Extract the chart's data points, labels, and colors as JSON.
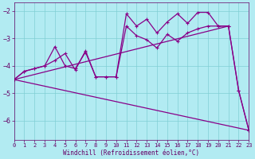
{
  "background_color": "#b2ebf2",
  "line_color": "#880088",
  "grid_color": "#80cfd4",
  "xlabel": "Windchill (Refroidissement éolien,°C)",
  "xlim": [
    0,
    23
  ],
  "ylim": [
    -6.7,
    -1.7
  ],
  "yticks": [
    -6,
    -5,
    -4,
    -3,
    -2
  ],
  "xticks": [
    0,
    1,
    2,
    3,
    4,
    5,
    6,
    7,
    8,
    9,
    10,
    11,
    12,
    13,
    14,
    15,
    16,
    17,
    18,
    19,
    20,
    21,
    22,
    23
  ],
  "line1_x": [
    0,
    1,
    2,
    3,
    4,
    5,
    6,
    7,
    8,
    9,
    10,
    11,
    12,
    13,
    14,
    15,
    16,
    17,
    18,
    19,
    20,
    21,
    22,
    23
  ],
  "line1_y": [
    -4.5,
    -4.2,
    -4.1,
    -4.0,
    -3.3,
    -4.0,
    -4.1,
    -3.5,
    -4.4,
    -4.4,
    -4.4,
    -2.1,
    -2.55,
    -2.3,
    -2.8,
    -2.4,
    -2.1,
    -2.45,
    -2.05,
    -2.05,
    -2.55,
    -2.55,
    -4.9,
    -6.35
  ],
  "line2_x": [
    0,
    1,
    2,
    3,
    4,
    5,
    6,
    7,
    8,
    9,
    10,
    11,
    12,
    13,
    14,
    15,
    16,
    17,
    18,
    19,
    20,
    21,
    22,
    23
  ],
  "line2_y": [
    -4.5,
    -4.2,
    -4.1,
    -4.0,
    -3.8,
    -3.55,
    -4.15,
    -3.45,
    -4.4,
    -4.4,
    -4.4,
    -2.55,
    -2.9,
    -3.05,
    -3.35,
    -2.85,
    -3.1,
    -2.8,
    -2.65,
    -2.55,
    -2.55,
    -2.55,
    -4.9,
    -6.35
  ],
  "line3_x": [
    0,
    23
  ],
  "line3_y": [
    -4.5,
    -6.35
  ],
  "line4_x": [
    0,
    21
  ],
  "line4_y": [
    -4.5,
    -2.55
  ]
}
